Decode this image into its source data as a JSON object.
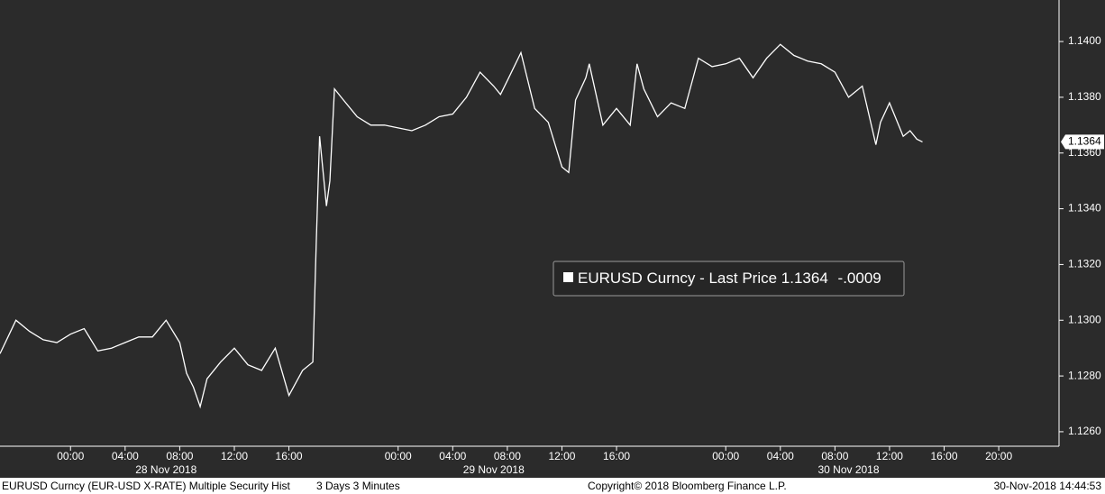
{
  "chart_data": {
    "type": "line",
    "x": [
      "2018-11-27 18:50",
      "2018-11-27 20:00",
      "2018-11-27 21:00",
      "2018-11-27 22:00",
      "2018-11-27 23:00",
      "2018-11-28 00:00",
      "2018-11-28 01:00",
      "2018-11-28 02:00",
      "2018-11-28 03:00",
      "2018-11-28 04:00",
      "2018-11-28 05:00",
      "2018-11-28 06:00",
      "2018-11-28 07:00",
      "2018-11-28 08:00",
      "2018-11-28 08:30",
      "2018-11-28 09:00",
      "2018-11-28 09:30",
      "2018-11-28 10:00",
      "2018-11-28 11:00",
      "2018-11-28 12:00",
      "2018-11-28 13:00",
      "2018-11-28 14:00",
      "2018-11-28 15:00",
      "2018-11-28 16:00",
      "2018-11-28 17:00",
      "2018-11-28 17:45",
      "2018-11-28 18:00",
      "2018-11-28 18:15",
      "2018-11-28 18:45",
      "2018-11-28 19:00",
      "2018-11-28 19:20",
      "2018-11-28 20:00",
      "2018-11-28 21:00",
      "2018-11-28 22:00",
      "2018-11-28 23:00",
      "2018-11-29 00:00",
      "2018-11-29 01:00",
      "2018-11-29 02:00",
      "2018-11-29 03:00",
      "2018-11-29 04:00",
      "2018-11-29 05:00",
      "2018-11-29 06:00",
      "2018-11-29 07:00",
      "2018-11-29 07:30",
      "2018-11-29 08:00",
      "2018-11-29 09:00",
      "2018-11-29 10:00",
      "2018-11-29 11:00",
      "2018-11-29 12:00",
      "2018-11-29 12:30",
      "2018-11-29 13:00",
      "2018-11-29 13:45",
      "2018-11-29 14:00",
      "2018-11-29 15:00",
      "2018-11-29 16:00",
      "2018-11-29 17:00",
      "2018-11-29 17:30",
      "2018-11-29 18:00",
      "2018-11-29 19:00",
      "2018-11-29 20:00",
      "2018-11-29 21:00",
      "2018-11-29 22:00",
      "2018-11-29 23:00",
      "2018-11-30 00:00",
      "2018-11-30 01:00",
      "2018-11-30 02:00",
      "2018-11-30 03:00",
      "2018-11-30 04:00",
      "2018-11-30 05:00",
      "2018-11-30 06:00",
      "2018-11-30 07:00",
      "2018-11-30 08:00",
      "2018-11-30 09:00",
      "2018-11-30 10:00",
      "2018-11-30 11:00",
      "2018-11-30 11:20",
      "2018-11-30 12:00",
      "2018-11-30 13:00",
      "2018-11-30 13:30",
      "2018-11-30 14:00",
      "2018-11-30 14:25"
    ],
    "series": [
      {
        "name": "EURUSD Curncy - Last Price",
        "color": "#ffffff",
        "values": [
          1.1288,
          1.13,
          1.1296,
          1.1293,
          1.1292,
          1.1295,
          1.1297,
          1.1289,
          1.129,
          1.1292,
          1.1294,
          1.1294,
          1.13,
          1.1292,
          1.1281,
          1.1276,
          1.1269,
          1.1279,
          1.1285,
          1.129,
          1.1284,
          1.1282,
          1.129,
          1.1273,
          1.1282,
          1.1285,
          1.1328,
          1.1366,
          1.1341,
          1.135,
          1.1383,
          1.1379,
          1.1373,
          1.137,
          1.137,
          1.1369,
          1.1368,
          1.137,
          1.1373,
          1.1374,
          1.138,
          1.1389,
          1.1384,
          1.1381,
          1.1386,
          1.1396,
          1.1376,
          1.1371,
          1.1355,
          1.1353,
          1.1379,
          1.1387,
          1.1392,
          1.137,
          1.1376,
          1.137,
          1.1392,
          1.1383,
          1.1373,
          1.1378,
          1.1376,
          1.1394,
          1.1391,
          1.1392,
          1.1394,
          1.1387,
          1.1394,
          1.1399,
          1.1395,
          1.1393,
          1.1392,
          1.1389,
          1.138,
          1.1384,
          1.1363,
          1.1371,
          1.1378,
          1.1366,
          1.1368,
          1.1365,
          1.1364
        ],
        "last_price": {
          "value": 1.1364,
          "label": "1.1364"
        },
        "change": {
          "value": -0.0009,
          "label": "-.0009"
        }
      }
    ],
    "xlim": [
      "2018-11-27 18:50",
      "2018-12-01 00:25"
    ],
    "xticks": [
      {
        "value": "2018-11-28 00:00",
        "label": "00:00"
      },
      {
        "value": "2018-11-28 04:00",
        "label": "04:00"
      },
      {
        "value": "2018-11-28 08:00",
        "label": "08:00"
      },
      {
        "value": "2018-11-28 12:00",
        "label": "12:00"
      },
      {
        "value": "2018-11-28 16:00",
        "label": "16:00"
      },
      {
        "value": "2018-11-29 00:00",
        "label": "00:00"
      },
      {
        "value": "2018-11-29 04:00",
        "label": "04:00"
      },
      {
        "value": "2018-11-29 08:00",
        "label": "08:00"
      },
      {
        "value": "2018-11-29 12:00",
        "label": "12:00"
      },
      {
        "value": "2018-11-29 16:00",
        "label": "16:00"
      },
      {
        "value": "2018-11-30 00:00",
        "label": "00:00"
      },
      {
        "value": "2018-11-30 04:00",
        "label": "04:00"
      },
      {
        "value": "2018-11-30 08:00",
        "label": "08:00"
      },
      {
        "value": "2018-11-30 12:00",
        "label": "12:00"
      },
      {
        "value": "2018-11-30 16:00",
        "label": "16:00"
      },
      {
        "value": "2018-11-30 20:00",
        "label": "20:00"
      }
    ],
    "xdate_ticks": [
      {
        "value": "2018-11-28 07:00",
        "label": "28 Nov 2018"
      },
      {
        "value": "2018-11-29 07:00",
        "label": "29 Nov 2018"
      },
      {
        "value": "2018-11-30 09:00",
        "label": "30 Nov 2018"
      }
    ],
    "ylim": [
      1.12548,
      1.14149
    ],
    "yticks": [
      {
        "value": 1.126,
        "label": "1.1260"
      },
      {
        "value": 1.128,
        "label": "1.1280"
      },
      {
        "value": 1.13,
        "label": "1.1300"
      },
      {
        "value": 1.132,
        "label": "1.1320"
      },
      {
        "value": 1.134,
        "label": "1.1340"
      },
      {
        "value": 1.136,
        "label": "1.1360"
      },
      {
        "value": 1.138,
        "label": "1.1380"
      },
      {
        "value": 1.14,
        "label": "1.1400"
      }
    ],
    "grid": false
  },
  "footer": {
    "security": "EURUSD Curncy (EUR-USD X-RATE) Multiple Security Hist",
    "period": "3 Days 3 Minutes",
    "copyright": "Copyright© 2018 Bloomberg Finance L.P.",
    "timestamp": "30-Nov-2018 14:44:53"
  }
}
